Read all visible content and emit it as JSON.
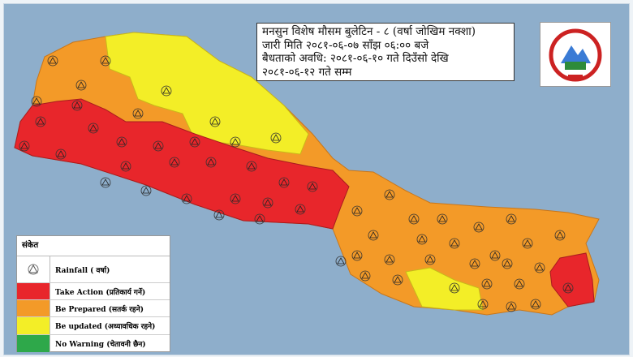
{
  "title": {
    "lines": [
      "मनसुन  विशेष मौसम बुलेटिन - ८ (वर्षा जोखिम नक्शा)",
      "जारी मिति २०८१-०६-०७ साँझ ०६:०० बजे",
      "बैधताको अवधि: २०८१-०६-१० गते दिउँसो देखि",
      "२०८१-०६-१२ गते सम्म"
    ]
  },
  "legend": {
    "header": "संकेत",
    "items": [
      {
        "icon": "rainfall-icon",
        "label": "Rainfall ( वर्षा)"
      },
      {
        "color": "#e8262b",
        "label": "Take Action (प्रतिकार्य गर्ने)"
      },
      {
        "color": "#f39a28",
        "label": "Be Prepared (सतर्क रहने)"
      },
      {
        "color": "#f3ee27",
        "label": "Be updated (अध्यावधिक रहने)"
      },
      {
        "color": "#2ea84a",
        "label": "No Warning (चेतावनी छैन)"
      }
    ]
  },
  "colors": {
    "background": "#8eaecb",
    "red": "#e8262b",
    "orange": "#f39a28",
    "yellow": "#f3ee27",
    "green": "#2ea84a"
  },
  "logo": "government-of-nepal-emblem"
}
